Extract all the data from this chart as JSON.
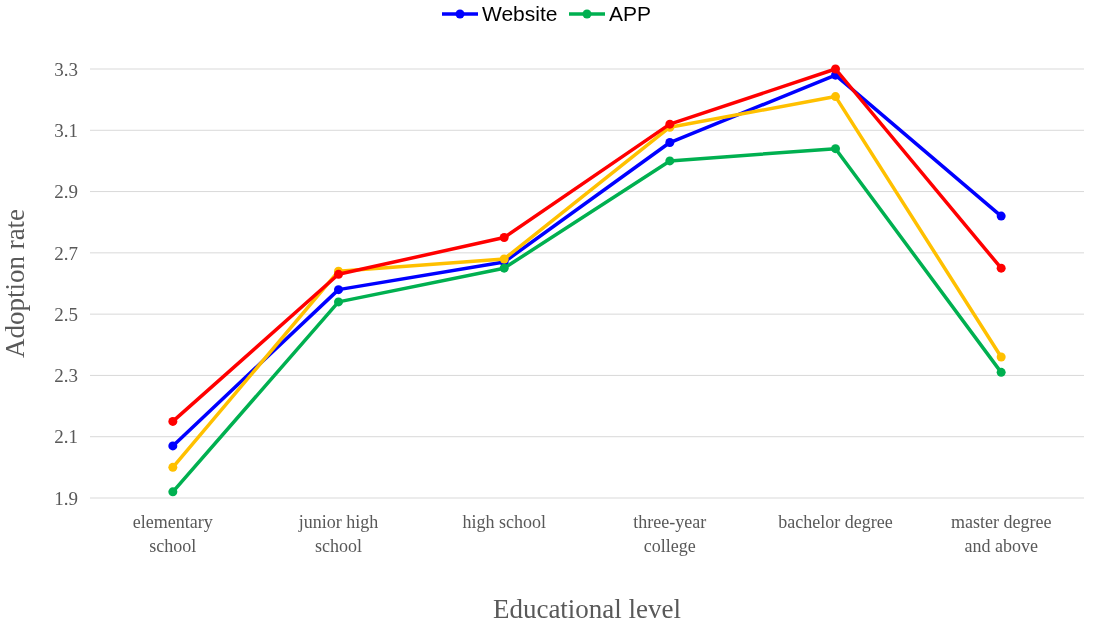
{
  "chart_data": {
    "type": "line",
    "xlabel": "Educational level",
    "ylabel": "Adoption rate",
    "categories": [
      "elementary school",
      "junior high school",
      "high school",
      "three-year college",
      "bachelor degree",
      "master degree and above"
    ],
    "series": [
      {
        "name": "Website",
        "color": "#0000ff",
        "values": [
          2.07,
          2.58,
          2.67,
          3.06,
          3.28,
          2.82
        ]
      },
      {
        "name": "APP",
        "color": "#00b050",
        "values": [
          1.92,
          2.54,
          2.65,
          3.0,
          3.04,
          2.31
        ]
      },
      {
        "color": "#ffc000",
        "values": [
          2.0,
          2.64,
          2.68,
          3.11,
          3.21,
          2.36
        ]
      },
      {
        "color": "#ff0000",
        "values": [
          2.15,
          2.63,
          2.75,
          3.12,
          3.3,
          2.65
        ]
      }
    ],
    "ylim": [
      1.9,
      3.3
    ],
    "yticks": [
      1.9,
      2.1,
      2.3,
      2.5,
      2.7,
      2.9,
      3.1,
      3.3
    ],
    "grid": "y",
    "legend": "top",
    "marker": "circle",
    "line_style": "solid"
  }
}
